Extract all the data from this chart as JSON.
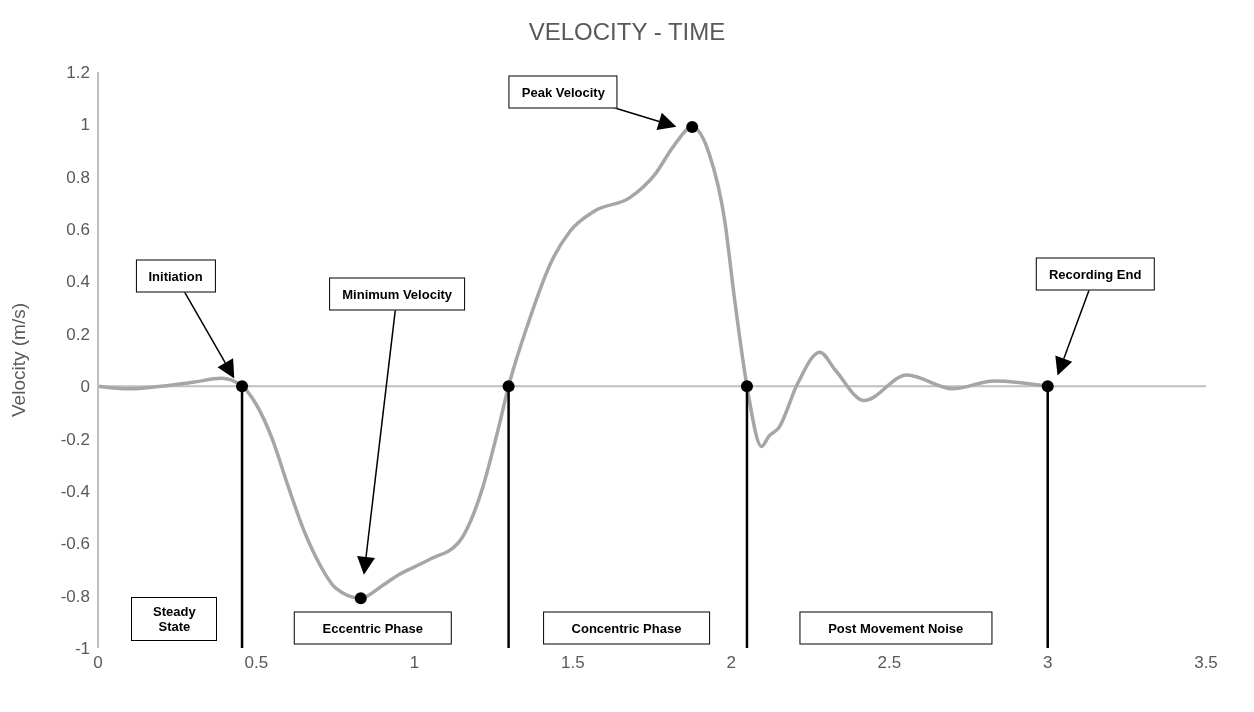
{
  "chart_data": {
    "type": "line",
    "title": "VELOCITY - TIME",
    "ylabel": "Velocity (m/s)",
    "xlim": [
      0,
      3.5
    ],
    "xticks": [
      0,
      0.5,
      1,
      1.5,
      2,
      2.5,
      3,
      3.5
    ],
    "ylim": [
      -1,
      1.2
    ],
    "yticks": [
      -1,
      -0.8,
      -0.6,
      -0.4,
      -0.2,
      0,
      0.2,
      0.4,
      0.6,
      0.8,
      1,
      1.2
    ],
    "series": [
      {
        "color": "#a6a6a6",
        "x": [
          0,
          0.1,
          0.2,
          0.3,
          0.39,
          0.455,
          0.5,
          0.55,
          0.6,
          0.65,
          0.7,
          0.75,
          0.83,
          0.9,
          0.95,
          1.0,
          1.05,
          1.137,
          1.212,
          1.263,
          1.297,
          1.356,
          1.43,
          1.49,
          1.57,
          1.68,
          1.76,
          1.82,
          1.877,
          1.93,
          1.98,
          2.01,
          2.05,
          2.096,
          2.12,
          2.15,
          2.21,
          2.28,
          2.33,
          2.42,
          2.555,
          2.7,
          2.83,
          3.0
        ],
        "values": [
          0,
          -0.01,
          0,
          0.015,
          0.03,
          0,
          -0.07,
          -0.2,
          -0.38,
          -0.55,
          -0.68,
          -0.77,
          -0.81,
          -0.76,
          -0.72,
          -0.69,
          -0.66,
          -0.6,
          -0.4,
          -0.17,
          0,
          0.23,
          0.47,
          0.59,
          0.67,
          0.72,
          0.81,
          0.92,
          0.99,
          0.89,
          0.63,
          0.34,
          0,
          -0.23,
          -0.19,
          -0.16,
          0.01,
          0.13,
          0.06,
          -0.055,
          0.043,
          -0.01,
          0.02,
          0
        ]
      },
      {
        "color": "#000000",
        "x": [
          0.455,
          0.455
        ],
        "values": [
          -1,
          0
        ]
      },
      {
        "color": "#000000",
        "x": [
          1.297,
          1.297
        ],
        "values": [
          -1,
          0
        ]
      },
      {
        "color": "#000000",
        "x": [
          2.05,
          2.05
        ],
        "values": [
          -1,
          0
        ]
      },
      {
        "color": "#000000",
        "x": [
          3.0,
          3.0
        ],
        "values": [
          -1,
          0
        ]
      },
      {
        "type": "scatter",
        "marker": "circle",
        "color": "#000000",
        "x": [
          0.455,
          0.83,
          1.297,
          1.877,
          2.05,
          3.0
        ],
        "values": [
          0,
          -0.81,
          0,
          0.99,
          0,
          0
        ]
      }
    ],
    "annotations": [
      "Initiation",
      "Minimum Velocity",
      "Peak Velocity",
      "Recording End",
      "Steady State",
      "Eccentric Phase",
      "Concentric Phase",
      "Post Movement Noise"
    ]
  }
}
